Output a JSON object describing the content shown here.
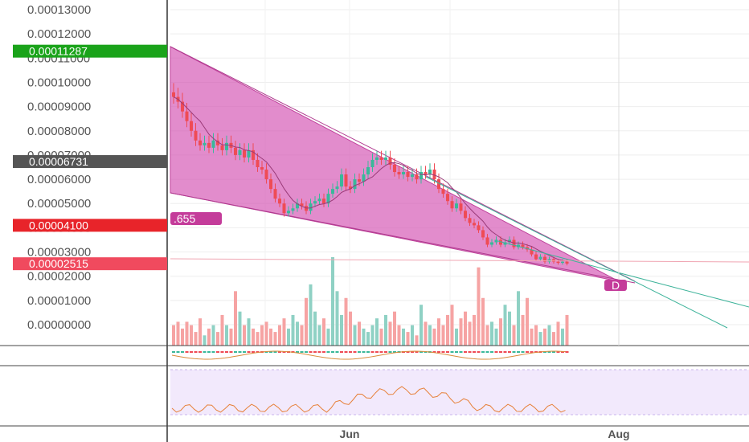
{
  "chart_data": {
    "type": "candlestick",
    "price_axis": {
      "labels": [
        "0.00013000",
        "0.00012000",
        "0.00011000",
        "0.00010000",
        "0.00009000",
        "0.00008000",
        "0.00007000",
        "0.00006000",
        "0.00005000",
        "0.00004000",
        "0.00003000",
        "0.00002000",
        "0.00001000",
        "0.00000000"
      ],
      "values": [
        0.00013,
        0.00012,
        0.00011,
        0.0001,
        9e-05,
        8e-05,
        7e-05,
        6e-05,
        5e-05,
        4e-05,
        3e-05,
        2e-05,
        1e-05,
        0.0
      ]
    },
    "time_axis": {
      "labels": [
        "Jun",
        "Aug"
      ]
    },
    "price_badges": [
      {
        "text": "0.00011287",
        "value": 0.00011287,
        "color": "#1aa31a"
      },
      {
        "text": "0.00006731",
        "value": 6.731e-05,
        "color": "#555555"
      },
      {
        "text": "0.00004100",
        "value": 4.1e-05,
        "color": "#e8242a"
      },
      {
        "text": "0.00002515",
        "value": 2.515e-05,
        "color": "#f04a5e"
      }
    ],
    "annotations": [
      {
        "text": ".655",
        "kind": "pattern-label"
      },
      {
        "text": "D",
        "kind": "pattern-point"
      }
    ],
    "closes": [
      9.4e-05,
      9.2e-05,
      8.8e-05,
      8.4e-05,
      8e-05,
      7.6e-05,
      7.4e-05,
      7.5e-05,
      7.3e-05,
      7.6e-05,
      7.4e-05,
      7.2e-05,
      7.5e-05,
      7.3e-05,
      7e-05,
      7.2e-05,
      6.9e-05,
      7.2e-05,
      6.8e-05,
      6.5e-05,
      6.4e-05,
      6e-05,
      5.6e-05,
      5.2e-05,
      5e-05,
      4.6e-05,
      4.7e-05,
      4.8e-05,
      5e-05,
      4.9e-05,
      4.7e-05,
      5e-05,
      5.1e-05,
      5.2e-05,
      5e-05,
      5.4e-05,
      5.6e-05,
      5.7e-05,
      6.2e-05,
      5.7e-05,
      5.6e-05,
      6e-05,
      5.9e-05,
      6.2e-05,
      6.5e-05,
      6.8e-05,
      6.9e-05,
      6.8e-05,
      6.9e-05,
      6.6e-05,
      6.3e-05,
      6.2e-05,
      6.3e-05,
      6.1e-05,
      6.2e-05,
      6e-05,
      6.3e-05,
      6.2e-05,
      6.4e-05,
      6e-05,
      5.6e-05,
      5.4e-05,
      5.1e-05,
      4.8e-05,
      5e-05,
      4.7e-05,
      4.4e-05,
      4.2e-05,
      4.1e-05,
      3.9e-05,
      3.6e-05,
      3.3e-05,
      3.4e-05,
      3.5e-05,
      3.3e-05,
      3.4e-05,
      3.5e-05,
      3.2e-05,
      3.3e-05,
      3.2e-05,
      3.1e-05,
      2.9e-05,
      2.7e-05,
      2.8e-05,
      2.6e-05,
      2.7e-05,
      2.6e-05,
      2.55e-05,
      2.6e-05,
      2.52e-05
    ],
    "volumes": [
      6,
      7,
      5,
      7,
      6,
      4,
      8,
      3,
      5,
      6,
      4,
      9,
      6,
      5,
      16,
      10,
      6,
      8,
      5,
      4,
      6,
      7,
      5,
      4,
      6,
      8,
      5,
      9,
      7,
      6,
      14,
      18,
      10,
      6,
      8,
      5,
      26,
      16,
      9,
      14,
      10,
      6,
      7,
      5,
      4,
      6,
      8,
      5,
      9,
      7,
      10,
      6,
      5,
      4,
      6,
      3,
      12,
      7,
      6,
      5,
      8,
      6,
      9,
      12,
      5,
      8,
      10,
      7,
      9,
      23,
      14,
      6,
      7,
      5,
      8,
      12,
      10,
      6,
      16,
      9,
      14,
      5,
      6,
      4,
      5,
      6,
      4,
      7,
      5,
      9
    ]
  }
}
